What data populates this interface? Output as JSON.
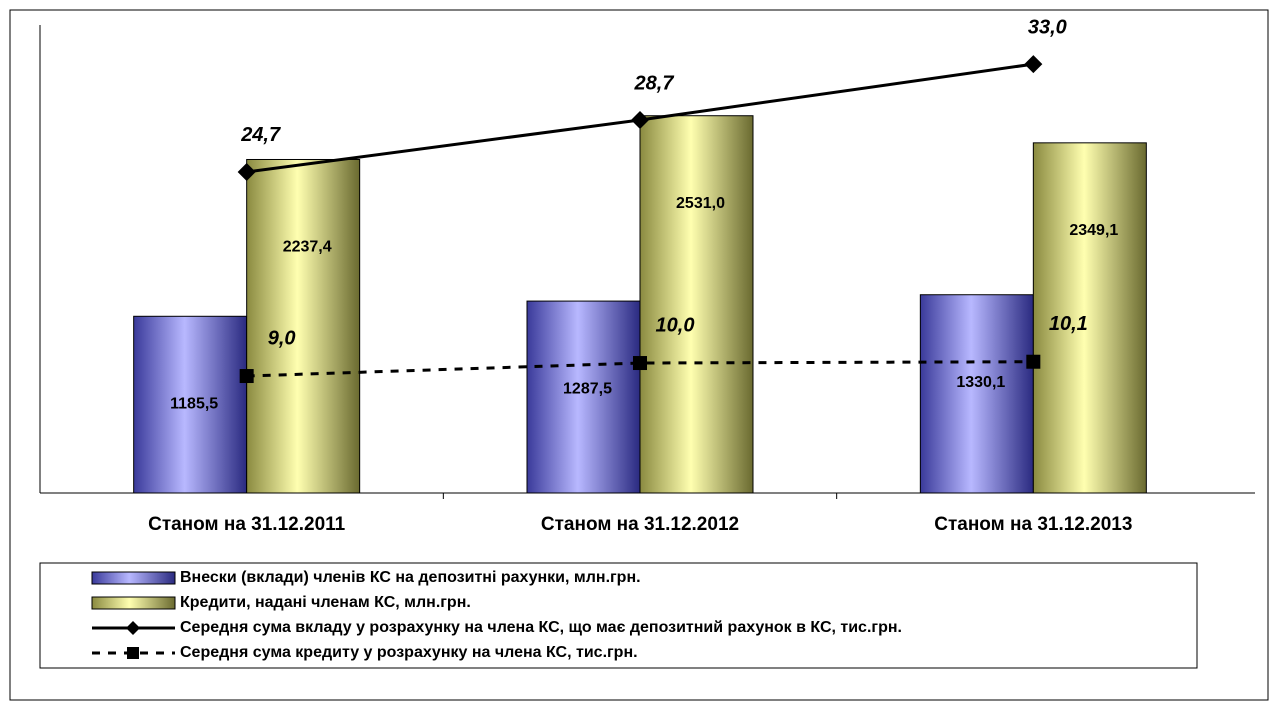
{
  "chart_data": {
    "type": "bar-line",
    "categories": [
      "Станом на 31.12.2011",
      "Станом на 31.12.2012",
      "Станом на 31.12.2013"
    ],
    "series": [
      {
        "name": "Внески (вклади) членів КС на депозитні рахунки, млн.грн.",
        "type": "bar",
        "color": "#8080ff",
        "values": [
          1185.5,
          1287.5,
          1330.1
        ],
        "value_labels": [
          "1185,5",
          "1287,5",
          "1330,1"
        ]
      },
      {
        "name": "Кредити, надані членам КС, млн.грн.",
        "type": "bar",
        "color": "#ffff99",
        "values": [
          2237.4,
          2531.0,
          2349.1
        ],
        "value_labels": [
          "2237,4",
          "2531,0",
          "2349,1"
        ]
      },
      {
        "name": "Середня сума вкладу у розрахунку на члена КС, що має депозитний рахунок в КС, тис.грн.",
        "type": "line",
        "axis": "y2",
        "marker": "diamond",
        "dashed": false,
        "color": "#000000",
        "values": [
          24.7,
          28.7,
          33.0
        ],
        "value_labels": [
          "24,7",
          "28,7",
          "33,0"
        ]
      },
      {
        "name": "Середня сума кредиту у розрахунку на члена КС, тис.грн.",
        "type": "line",
        "axis": "y2",
        "marker": "square",
        "dashed": true,
        "color": "#000000",
        "values": [
          9.0,
          10.0,
          10.1
        ],
        "value_labels": [
          "9,0",
          "10,0",
          "10,1"
        ]
      }
    ],
    "ylim": [
      0,
      3200
    ],
    "y2lim": [
      0,
      36.7
    ],
    "legend": "bottom"
  }
}
